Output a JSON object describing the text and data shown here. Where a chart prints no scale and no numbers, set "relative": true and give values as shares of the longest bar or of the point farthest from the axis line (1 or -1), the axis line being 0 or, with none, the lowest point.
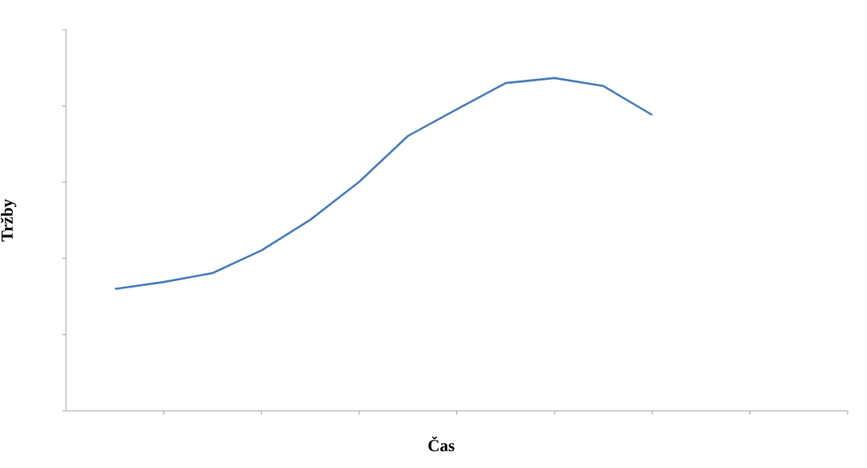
{
  "chart_data": {
    "type": "line",
    "xlabel": "Čas",
    "ylabel": "Tržby",
    "relative": true,
    "tick_labels": false,
    "color": "#4a7ebb",
    "categories": [
      null,
      null,
      null,
      null,
      null,
      null,
      null,
      null,
      null,
      null,
      null,
      null
    ],
    "values": [
      0.366,
      0.387,
      0.414,
      0.482,
      0.574,
      0.688,
      0.826,
      0.906,
      0.985,
      1,
      0.976,
      0.889
    ]
  }
}
